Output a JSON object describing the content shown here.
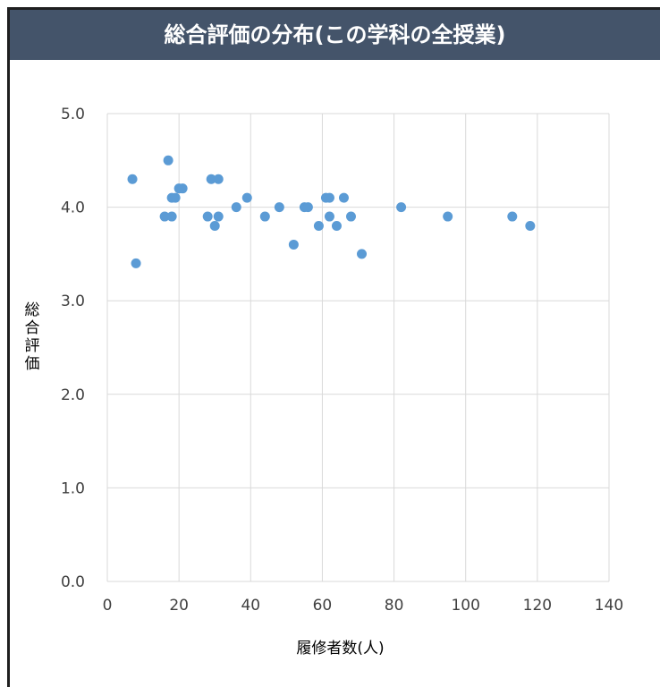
{
  "chart_title": "総合評価の分布(この学科の全授業)",
  "chart_data": {
    "type": "scatter",
    "title": "総合評価の分布(この学科の全授業)",
    "xlabel": "履修者数(人)",
    "ylabel": "総合評価",
    "xlim": [
      0,
      140
    ],
    "ylim": [
      0,
      5
    ],
    "x_ticks": [
      "0",
      "20",
      "40",
      "60",
      "80",
      "100",
      "120",
      "140"
    ],
    "y_ticks": [
      "0.0",
      "1.0",
      "2.0",
      "3.0",
      "4.0",
      "5.0"
    ],
    "grid": true,
    "marker_color": "#5b9bd5",
    "points": [
      {
        "x": 7,
        "y": 4.3
      },
      {
        "x": 8,
        "y": 3.4
      },
      {
        "x": 16,
        "y": 3.9
      },
      {
        "x": 17,
        "y": 4.5
      },
      {
        "x": 18,
        "y": 4.1
      },
      {
        "x": 18,
        "y": 3.9
      },
      {
        "x": 19,
        "y": 4.1
      },
      {
        "x": 20,
        "y": 4.2
      },
      {
        "x": 21,
        "y": 4.2
      },
      {
        "x": 28,
        "y": 3.9
      },
      {
        "x": 29,
        "y": 4.3
      },
      {
        "x": 30,
        "y": 3.8
      },
      {
        "x": 31,
        "y": 4.3
      },
      {
        "x": 31,
        "y": 3.9
      },
      {
        "x": 36,
        "y": 4.0
      },
      {
        "x": 39,
        "y": 4.1
      },
      {
        "x": 44,
        "y": 3.9
      },
      {
        "x": 48,
        "y": 4.0
      },
      {
        "x": 52,
        "y": 3.6
      },
      {
        "x": 55,
        "y": 4.0
      },
      {
        "x": 56,
        "y": 4.0
      },
      {
        "x": 59,
        "y": 3.8
      },
      {
        "x": 61,
        "y": 4.1
      },
      {
        "x": 62,
        "y": 4.1
      },
      {
        "x": 62,
        "y": 3.9
      },
      {
        "x": 64,
        "y": 3.8
      },
      {
        "x": 66,
        "y": 4.1
      },
      {
        "x": 68,
        "y": 3.9
      },
      {
        "x": 71,
        "y": 3.5
      },
      {
        "x": 82,
        "y": 4.0
      },
      {
        "x": 95,
        "y": 3.9
      },
      {
        "x": 113,
        "y": 3.9
      },
      {
        "x": 118,
        "y": 3.8
      }
    ]
  }
}
